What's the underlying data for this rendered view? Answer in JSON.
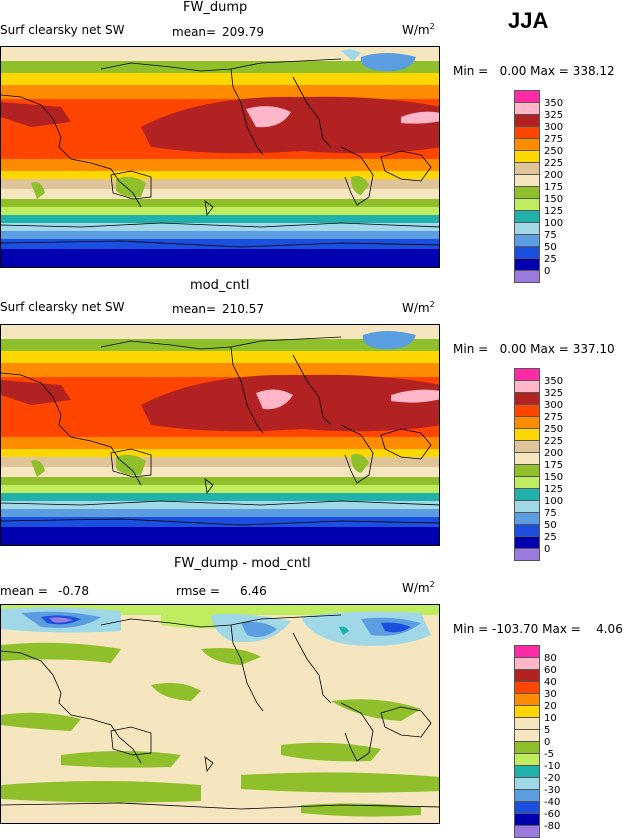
{
  "season": "JJA",
  "panels": [
    {
      "title": "FW_dump",
      "left_label": "Surf clearsky net SW",
      "stat_label": "mean=",
      "stat_value": "209.79",
      "units": "W/m",
      "units_sup": "2",
      "min_label": "Min =",
      "min_value": "0.00",
      "max_label": "Max =",
      "max_value": "338.12"
    },
    {
      "title": "mod_cntl",
      "left_label": "Surf clearsky net SW",
      "stat_label": "mean=",
      "stat_value": "210.57",
      "units": "W/m",
      "units_sup": "2",
      "min_label": "Min =",
      "min_value": "0.00",
      "max_label": "Max =",
      "max_value": "337.10"
    },
    {
      "title": "FW_dump - mod_cntl",
      "left_label": "mean =",
      "left_value": "-0.78",
      "stat_label": "rmse =",
      "stat_value": "6.46",
      "units": "W/m",
      "units_sup": "2",
      "min_label": "Min =",
      "min_value": "-103.70",
      "max_label": "Max =",
      "max_value": "4.06"
    }
  ],
  "colorbar_abs": {
    "labels": [
      "350",
      "325",
      "300",
      "275",
      "250",
      "225",
      "200",
      "175",
      "150",
      "125",
      "100",
      "75",
      "50",
      "25",
      "0"
    ],
    "colors": [
      "#ff2aa6",
      "#ffb6c9",
      "#b22222",
      "#ff4500",
      "#ff8c00",
      "#ffd700",
      "#dfc49a",
      "#f5e6c0",
      "#8fbf2a",
      "#c0ec60",
      "#20b2aa",
      "#a0d8e8",
      "#5a9de0",
      "#1a4fe0",
      "#0000b0",
      "#9c7be0"
    ]
  },
  "colorbar_diff": {
    "labels": [
      "80",
      "60",
      "40",
      "30",
      "20",
      "10",
      "5",
      "0",
      "-5",
      "-10",
      "-20",
      "-30",
      "-40",
      "-60",
      "-80"
    ],
    "colors": [
      "#ff2aa6",
      "#ffb6c9",
      "#b22222",
      "#ff4500",
      "#ff8c00",
      "#ffd700",
      "#f5e6c0",
      "#f5e6c0",
      "#8fbf2a",
      "#c0ec60",
      "#20b2aa",
      "#a0d8e8",
      "#5a9de0",
      "#1a4fe0",
      "#0000b0",
      "#9c7be0"
    ]
  }
}
